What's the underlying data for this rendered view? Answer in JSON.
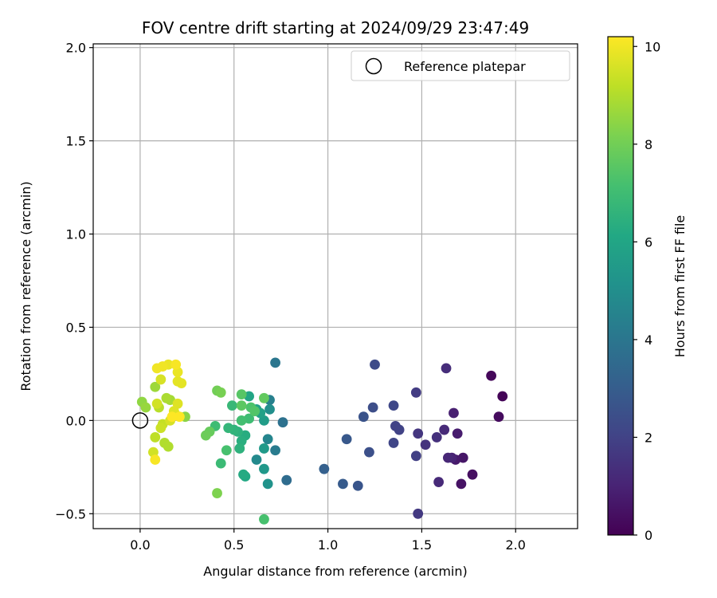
{
  "chart_data": {
    "type": "scatter",
    "title": "FOV centre drift starting at 2024/09/29 23:47:49",
    "xlabel": "Angular distance from reference (arcmin)",
    "ylabel": "Rotation from reference (arcmin)",
    "xlim": [
      -0.25,
      2.33
    ],
    "ylim": [
      -0.58,
      2.02
    ],
    "xticks": [
      0.0,
      0.5,
      1.0,
      1.5,
      2.0
    ],
    "xtick_labels": [
      "0.0",
      "0.5",
      "1.0",
      "1.5",
      "2.0"
    ],
    "yticks": [
      -0.5,
      0.0,
      0.5,
      1.0,
      1.5,
      2.0
    ],
    "ytick_labels": [
      "−0.5",
      "0.0",
      "0.5",
      "1.0",
      "1.5",
      "2.0"
    ],
    "grid": true,
    "legend": {
      "position": "top-right",
      "entries": [
        "Reference platepar"
      ]
    },
    "reference_point": {
      "x": 0.0,
      "y": 0.0,
      "marker": "open-circle"
    },
    "colorbar": {
      "label": "Hours from first FF file",
      "min": 0,
      "max": 10.2,
      "colormap": "viridis",
      "ticks": [
        0,
        2,
        4,
        6,
        8,
        10
      ],
      "tick_labels": [
        "0",
        "2",
        "4",
        "6",
        "8",
        "10"
      ]
    },
    "points": [
      {
        "x": 1.93,
        "y": 0.13,
        "hours": 0.1
      },
      {
        "x": 1.87,
        "y": 0.24,
        "hours": 0.2
      },
      {
        "x": 1.91,
        "y": 0.02,
        "hours": 0.3
      },
      {
        "x": 1.77,
        "y": -0.29,
        "hours": 0.4
      },
      {
        "x": 1.71,
        "y": -0.34,
        "hours": 0.5
      },
      {
        "x": 1.72,
        "y": -0.2,
        "hours": 0.6
      },
      {
        "x": 1.68,
        "y": -0.21,
        "hours": 0.7
      },
      {
        "x": 1.69,
        "y": -0.07,
        "hours": 0.8
      },
      {
        "x": 1.67,
        "y": 0.04,
        "hours": 0.9
      },
      {
        "x": 1.66,
        "y": -0.2,
        "hours": 1.0
      },
      {
        "x": 1.64,
        "y": -0.2,
        "hours": 1.1
      },
      {
        "x": 1.62,
        "y": -0.05,
        "hours": 1.2
      },
      {
        "x": 1.59,
        "y": -0.33,
        "hours": 1.2
      },
      {
        "x": 1.63,
        "y": 0.28,
        "hours": 1.3
      },
      {
        "x": 1.58,
        "y": -0.09,
        "hours": 1.4
      },
      {
        "x": 1.52,
        "y": -0.13,
        "hours": 1.5
      },
      {
        "x": 1.48,
        "y": -0.07,
        "hours": 1.6
      },
      {
        "x": 1.48,
        "y": -0.5,
        "hours": 1.7
      },
      {
        "x": 1.47,
        "y": 0.15,
        "hours": 1.8
      },
      {
        "x": 1.47,
        "y": -0.19,
        "hours": 1.9
      },
      {
        "x": 1.38,
        "y": -0.05,
        "hours": 2.0
      },
      {
        "x": 1.36,
        "y": -0.03,
        "hours": 2.0
      },
      {
        "x": 1.35,
        "y": -0.12,
        "hours": 2.1
      },
      {
        "x": 1.35,
        "y": 0.08,
        "hours": 2.2
      },
      {
        "x": 1.25,
        "y": 0.3,
        "hours": 2.3
      },
      {
        "x": 1.24,
        "y": 0.07,
        "hours": 2.4
      },
      {
        "x": 1.22,
        "y": -0.17,
        "hours": 2.5
      },
      {
        "x": 1.19,
        "y": 0.02,
        "hours": 2.6
      },
      {
        "x": 1.16,
        "y": -0.35,
        "hours": 2.7
      },
      {
        "x": 1.1,
        "y": -0.1,
        "hours": 2.8
      },
      {
        "x": 1.08,
        "y": -0.34,
        "hours": 2.9
      },
      {
        "x": 0.98,
        "y": -0.26,
        "hours": 3.1
      },
      {
        "x": 0.78,
        "y": -0.32,
        "hours": 3.6
      },
      {
        "x": 0.76,
        "y": -0.01,
        "hours": 3.8
      },
      {
        "x": 0.72,
        "y": 0.31,
        "hours": 4.0
      },
      {
        "x": 0.72,
        "y": -0.16,
        "hours": 4.2
      },
      {
        "x": 0.69,
        "y": 0.11,
        "hours": 4.4
      },
      {
        "x": 0.68,
        "y": -0.1,
        "hours": 4.6
      },
      {
        "x": 0.62,
        "y": -0.21,
        "hours": 4.8
      },
      {
        "x": 0.69,
        "y": 0.06,
        "hours": 5.0
      },
      {
        "x": 0.68,
        "y": -0.34,
        "hours": 5.2
      },
      {
        "x": 0.66,
        "y": -0.26,
        "hours": 5.4
      },
      {
        "x": 0.66,
        "y": -0.15,
        "hours": 5.5
      },
      {
        "x": 0.66,
        "y": 0.0,
        "hours": 5.6
      },
      {
        "x": 0.64,
        "y": 0.04,
        "hours": 5.8
      },
      {
        "x": 0.62,
        "y": 0.06,
        "hours": 5.9
      },
      {
        "x": 0.58,
        "y": 0.13,
        "hours": 6.0
      },
      {
        "x": 0.56,
        "y": -0.3,
        "hours": 6.1
      },
      {
        "x": 0.55,
        "y": -0.29,
        "hours": 6.2
      },
      {
        "x": 0.56,
        "y": -0.08,
        "hours": 6.3
      },
      {
        "x": 0.54,
        "y": -0.11,
        "hours": 6.4
      },
      {
        "x": 0.53,
        "y": -0.15,
        "hours": 6.5
      },
      {
        "x": 0.52,
        "y": -0.06,
        "hours": 6.5
      },
      {
        "x": 0.5,
        "y": -0.05,
        "hours": 6.6
      },
      {
        "x": 0.47,
        "y": -0.04,
        "hours": 6.7
      },
      {
        "x": 0.49,
        "y": 0.08,
        "hours": 6.8
      },
      {
        "x": 0.43,
        "y": -0.23,
        "hours": 6.9
      },
      {
        "x": 0.4,
        "y": -0.03,
        "hours": 7.0
      },
      {
        "x": 0.58,
        "y": 0.01,
        "hours": 7.0
      },
      {
        "x": 0.54,
        "y": 0.0,
        "hours": 7.1
      },
      {
        "x": 0.66,
        "y": -0.53,
        "hours": 7.2
      },
      {
        "x": 0.46,
        "y": -0.16,
        "hours": 7.2
      },
      {
        "x": 0.59,
        "y": 0.07,
        "hours": 7.3
      },
      {
        "x": 0.61,
        "y": 0.05,
        "hours": 7.4
      },
      {
        "x": 0.54,
        "y": 0.14,
        "hours": 7.5
      },
      {
        "x": 0.54,
        "y": 0.08,
        "hours": 7.6
      },
      {
        "x": 0.66,
        "y": 0.12,
        "hours": 7.7
      },
      {
        "x": 0.37,
        "y": -0.06,
        "hours": 7.8
      },
      {
        "x": 0.35,
        "y": -0.08,
        "hours": 7.9
      },
      {
        "x": 0.41,
        "y": 0.16,
        "hours": 8.0
      },
      {
        "x": 0.43,
        "y": 0.15,
        "hours": 8.1
      },
      {
        "x": 0.41,
        "y": -0.39,
        "hours": 8.2
      },
      {
        "x": 0.24,
        "y": 0.02,
        "hours": 8.4
      },
      {
        "x": 0.01,
        "y": 0.1,
        "hours": 8.5
      },
      {
        "x": 0.03,
        "y": 0.07,
        "hours": 8.6
      },
      {
        "x": 0.08,
        "y": 0.18,
        "hours": 8.7
      },
      {
        "x": 0.16,
        "y": 0.11,
        "hours": 8.8
      },
      {
        "x": 0.14,
        "y": 0.12,
        "hours": 8.9
      },
      {
        "x": 0.15,
        "y": -0.14,
        "hours": 9.0
      },
      {
        "x": 0.13,
        "y": -0.12,
        "hours": 9.0
      },
      {
        "x": 0.1,
        "y": 0.07,
        "hours": 9.1
      },
      {
        "x": 0.08,
        "y": -0.09,
        "hours": 9.2
      },
      {
        "x": 0.12,
        "y": -0.02,
        "hours": 9.3
      },
      {
        "x": 0.19,
        "y": 0.03,
        "hours": 9.3
      },
      {
        "x": 0.11,
        "y": -0.04,
        "hours": 9.4
      },
      {
        "x": 0.07,
        "y": -0.17,
        "hours": 9.5
      },
      {
        "x": 0.09,
        "y": 0.09,
        "hours": 9.5
      },
      {
        "x": 0.11,
        "y": 0.22,
        "hours": 9.6
      },
      {
        "x": 0.16,
        "y": 0.0,
        "hours": 9.6
      },
      {
        "x": 0.2,
        "y": 0.09,
        "hours": 9.7
      },
      {
        "x": 0.18,
        "y": 0.05,
        "hours": 9.7
      },
      {
        "x": 0.22,
        "y": 0.2,
        "hours": 9.8
      },
      {
        "x": 0.2,
        "y": 0.21,
        "hours": 9.8
      },
      {
        "x": 0.2,
        "y": 0.26,
        "hours": 9.9
      },
      {
        "x": 0.15,
        "y": 0.3,
        "hours": 9.9
      },
      {
        "x": 0.12,
        "y": 0.29,
        "hours": 10.0
      },
      {
        "x": 0.09,
        "y": 0.28,
        "hours": 10.0
      },
      {
        "x": 0.08,
        "y": -0.21,
        "hours": 10.1
      },
      {
        "x": 0.19,
        "y": 0.3,
        "hours": 10.1
      },
      {
        "x": 0.21,
        "y": 0.02,
        "hours": 10.2
      },
      {
        "x": 0.17,
        "y": 0.02,
        "hours": 10.2
      }
    ]
  }
}
